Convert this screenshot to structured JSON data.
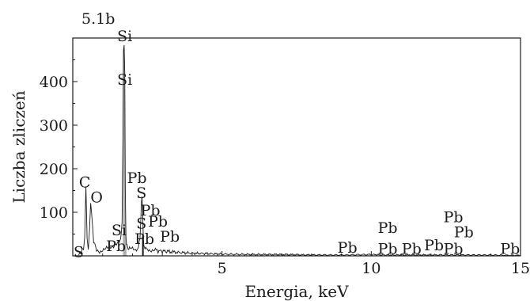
{
  "panel_label": "5.1b",
  "chart_data": {
    "type": "line",
    "title": "",
    "xlabel": "Energia, keV",
    "ylabel": "Liczba zliczeń",
    "xlim": [
      0,
      15
    ],
    "ylim": [
      0,
      500
    ],
    "x_ticks": [
      5,
      10,
      15
    ],
    "y_ticks": [
      100,
      200,
      300,
      400
    ],
    "grid": false,
    "legend": "none",
    "colors": {
      "spectrum": "#1a1a1a",
      "peak_fill": "#b0b0b0"
    },
    "series": [
      {
        "values_note": "",
        "x": [
          0.2,
          0.28,
          0.36,
          0.4,
          0.44,
          0.48,
          0.52,
          0.56,
          0.6,
          0.7,
          0.8,
          0.9,
          1.0,
          1.1,
          1.2,
          1.3,
          1.4,
          1.5,
          1.6,
          1.65,
          1.68,
          1.7,
          1.72,
          1.74,
          1.76,
          1.78,
          1.8,
          1.82,
          1.85,
          1.9,
          2.0,
          2.1,
          2.2,
          2.25,
          2.3,
          2.32,
          2.34,
          2.36,
          2.38,
          2.42,
          2.5,
          2.6,
          2.7,
          2.8,
          3.0,
          3.2,
          3.5,
          4.0,
          4.5,
          5.0,
          6.0,
          7.0,
          8.0,
          9.0,
          10.0,
          10.5,
          11.0,
          12.0,
          13.0,
          14.0,
          15.0
        ],
        "y": [
          2,
          8,
          18,
          45,
          160,
          40,
          15,
          60,
          125,
          30,
          12,
          10,
          14,
          15,
          18,
          22,
          25,
          28,
          35,
          80,
          260,
          470,
          480,
          420,
          150,
          40,
          26,
          20,
          18,
          16,
          15,
          14,
          20,
          40,
          120,
          135,
          100,
          45,
          25,
          18,
          16,
          14,
          12,
          12,
          11,
          10,
          8,
          6,
          5,
          4,
          3,
          3,
          2,
          2,
          3,
          2,
          2,
          2,
          2,
          2,
          1
        ]
      }
    ],
    "peak_labels": [
      {
        "text": "S",
        "x": 0.2,
        "y": 5
      },
      {
        "text": "C",
        "x": 0.4,
        "y": 165
      },
      {
        "text": "O",
        "x": 0.8,
        "y": 130
      },
      {
        "text": "Si",
        "x": 1.74,
        "y": 500
      },
      {
        "text": "Si",
        "x": 1.74,
        "y": 400
      },
      {
        "text": "Si",
        "x": 1.55,
        "y": 55
      },
      {
        "text": "Pb",
        "x": 1.45,
        "y": 18
      },
      {
        "text": "Pb",
        "x": 2.15,
        "y": 175
      },
      {
        "text": "S",
        "x": 2.3,
        "y": 140
      },
      {
        "text": "S",
        "x": 2.3,
        "y": 70
      },
      {
        "text": "Pb",
        "x": 2.6,
        "y": 100
      },
      {
        "text": "Pb",
        "x": 2.85,
        "y": 75
      },
      {
        "text": "Pb",
        "x": 2.4,
        "y": 35
      },
      {
        "text": "Pb",
        "x": 3.25,
        "y": 40
      },
      {
        "text": "Pb",
        "x": 9.2,
        "y": 15
      },
      {
        "text": "Pb",
        "x": 10.55,
        "y": 60
      },
      {
        "text": "Pb",
        "x": 10.55,
        "y": 12
      },
      {
        "text": "Pb",
        "x": 11.35,
        "y": 12
      },
      {
        "text": "Pb",
        "x": 12.1,
        "y": 20
      },
      {
        "text": "Pb",
        "x": 12.75,
        "y": 85
      },
      {
        "text": "Pb",
        "x": 13.1,
        "y": 50
      },
      {
        "text": "Pb",
        "x": 12.75,
        "y": 12
      },
      {
        "text": "Pb",
        "x": 14.65,
        "y": 12
      }
    ]
  }
}
